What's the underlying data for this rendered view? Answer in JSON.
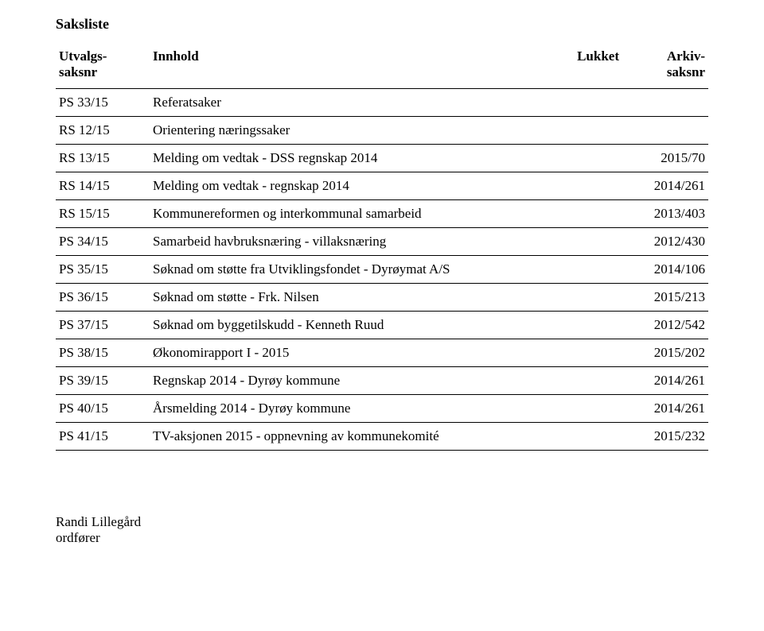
{
  "title": "Saksliste",
  "headers": {
    "saksnr_line1": "Utvalgs-",
    "saksnr_line2": "saksnr",
    "innhold": "Innhold",
    "lukket": "Lukket",
    "arkiv_line1": "Arkiv-",
    "arkiv_line2": "saksnr"
  },
  "rows": [
    {
      "num": "PS 33/15",
      "content": "Referatsaker",
      "arkiv": ""
    },
    {
      "num": "RS 12/15",
      "content": "Orientering næringssaker",
      "arkiv": ""
    },
    {
      "num": "RS 13/15",
      "content": "Melding om vedtak - DSS regnskap 2014",
      "arkiv": "2015/70"
    },
    {
      "num": "RS 14/15",
      "content": "Melding om vedtak - regnskap 2014",
      "arkiv": "2014/261"
    },
    {
      "num": "RS 15/15",
      "content": "Kommunereformen og interkommunal samarbeid",
      "arkiv": "2013/403"
    },
    {
      "num": "PS 34/15",
      "content": "Samarbeid havbruksnæring - villaksnæring",
      "arkiv": "2012/430"
    },
    {
      "num": "PS 35/15",
      "content": "Søknad om støtte fra Utviklingsfondet - Dyrøymat A/S",
      "arkiv": "2014/106"
    },
    {
      "num": "PS 36/15",
      "content": "Søknad om støtte - Frk. Nilsen",
      "arkiv": "2015/213"
    },
    {
      "num": "PS 37/15",
      "content": "Søknad om byggetilskudd - Kenneth Ruud",
      "arkiv": "2012/542"
    },
    {
      "num": "PS 38/15",
      "content": "Økonomirapport I - 2015",
      "arkiv": "2015/202"
    },
    {
      "num": "PS 39/15",
      "content": "Regnskap 2014 - Dyrøy kommune",
      "arkiv": "2014/261"
    },
    {
      "num": "PS 40/15",
      "content": "Årsmelding 2014 - Dyrøy kommune",
      "arkiv": "2014/261"
    },
    {
      "num": "PS 41/15",
      "content": "TV-aksjonen 2015 - oppnevning av kommunekomité",
      "arkiv": "2015/232"
    }
  ],
  "footer": {
    "name": "Randi Lillegård",
    "role": "ordfører"
  }
}
